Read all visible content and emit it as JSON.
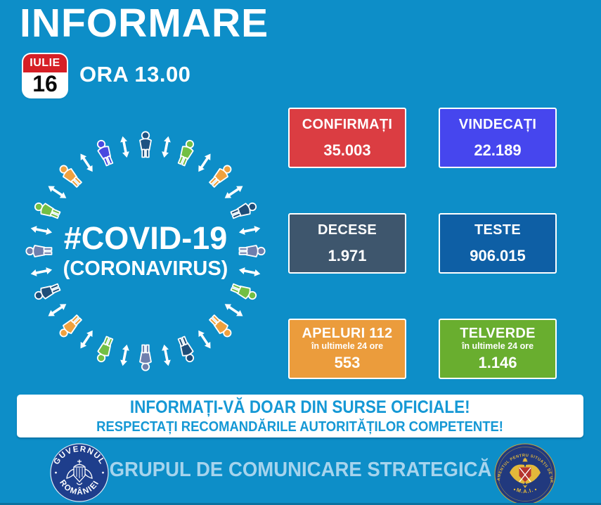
{
  "colors": {
    "background": "#0d8ec8",
    "banner_text": "#1598d5",
    "footer_text": "#a6d4ed",
    "calendar_red": "#d61f26",
    "logo_navy": "#1e3e8c",
    "logo_navy_right": "#21397e",
    "logo_gold": "#e3b83a"
  },
  "header": {
    "title": "INFORMARE",
    "calendar": {
      "month": "IULIE",
      "day": "16"
    },
    "time": "ORA 13.00"
  },
  "covid_ring": {
    "hashtag": "#COVID-19",
    "subtitle": "(CORONAVIRUS)",
    "person_colors": [
      "#1d5282",
      "#72bf44",
      "#f0a13e",
      "#1f4e79",
      "#6e7fae",
      "#72bf44",
      "#f0a13e",
      "#1f4e79",
      "#6e7fae",
      "#72bf44",
      "#f0a13e",
      "#1f4e79",
      "#6e7fae",
      "#72bf44",
      "#f0a13e",
      "#4949e0"
    ]
  },
  "stats": [
    {
      "label": "CONFIRMAȚI",
      "value": "35.003",
      "color": "#db3d42"
    },
    {
      "label": "VINDECAȚI",
      "value": "22.189",
      "color": "#4646ee"
    },
    {
      "label": "DECESE",
      "value": "1.971",
      "color": "#3e566d"
    },
    {
      "label": "TESTE",
      "value": "906.015",
      "color": "#0e5fa5"
    },
    {
      "label": "APELURI 112",
      "sublabel": "în ultimele 24 ore",
      "value": "553",
      "color": "#eb9c3c"
    },
    {
      "label": "TELVERDE",
      "sublabel": "în ultimele 24 ore",
      "value": "1.146",
      "color": "#69ae2f"
    }
  ],
  "banner": {
    "line1": "INFORMAȚI-VĂ DOAR DIN SURSE OFICIALE!",
    "line2": "RESPECTAȚI RECOMANDĂRILE AUTORITĂȚILOR COMPETENTE!"
  },
  "footer": {
    "title": "GRUPUL DE COMUNICARE STRATEGICĂ",
    "left_logo": {
      "top_text": "GUVERNUL",
      "bottom_text": "ROMÂNIEI"
    },
    "right_logo": {
      "ring_text": "DEPARTAMENTUL PENTRU SITUAȚII DE URGENȚĂ",
      "bottom_text": "M.A.I."
    }
  }
}
